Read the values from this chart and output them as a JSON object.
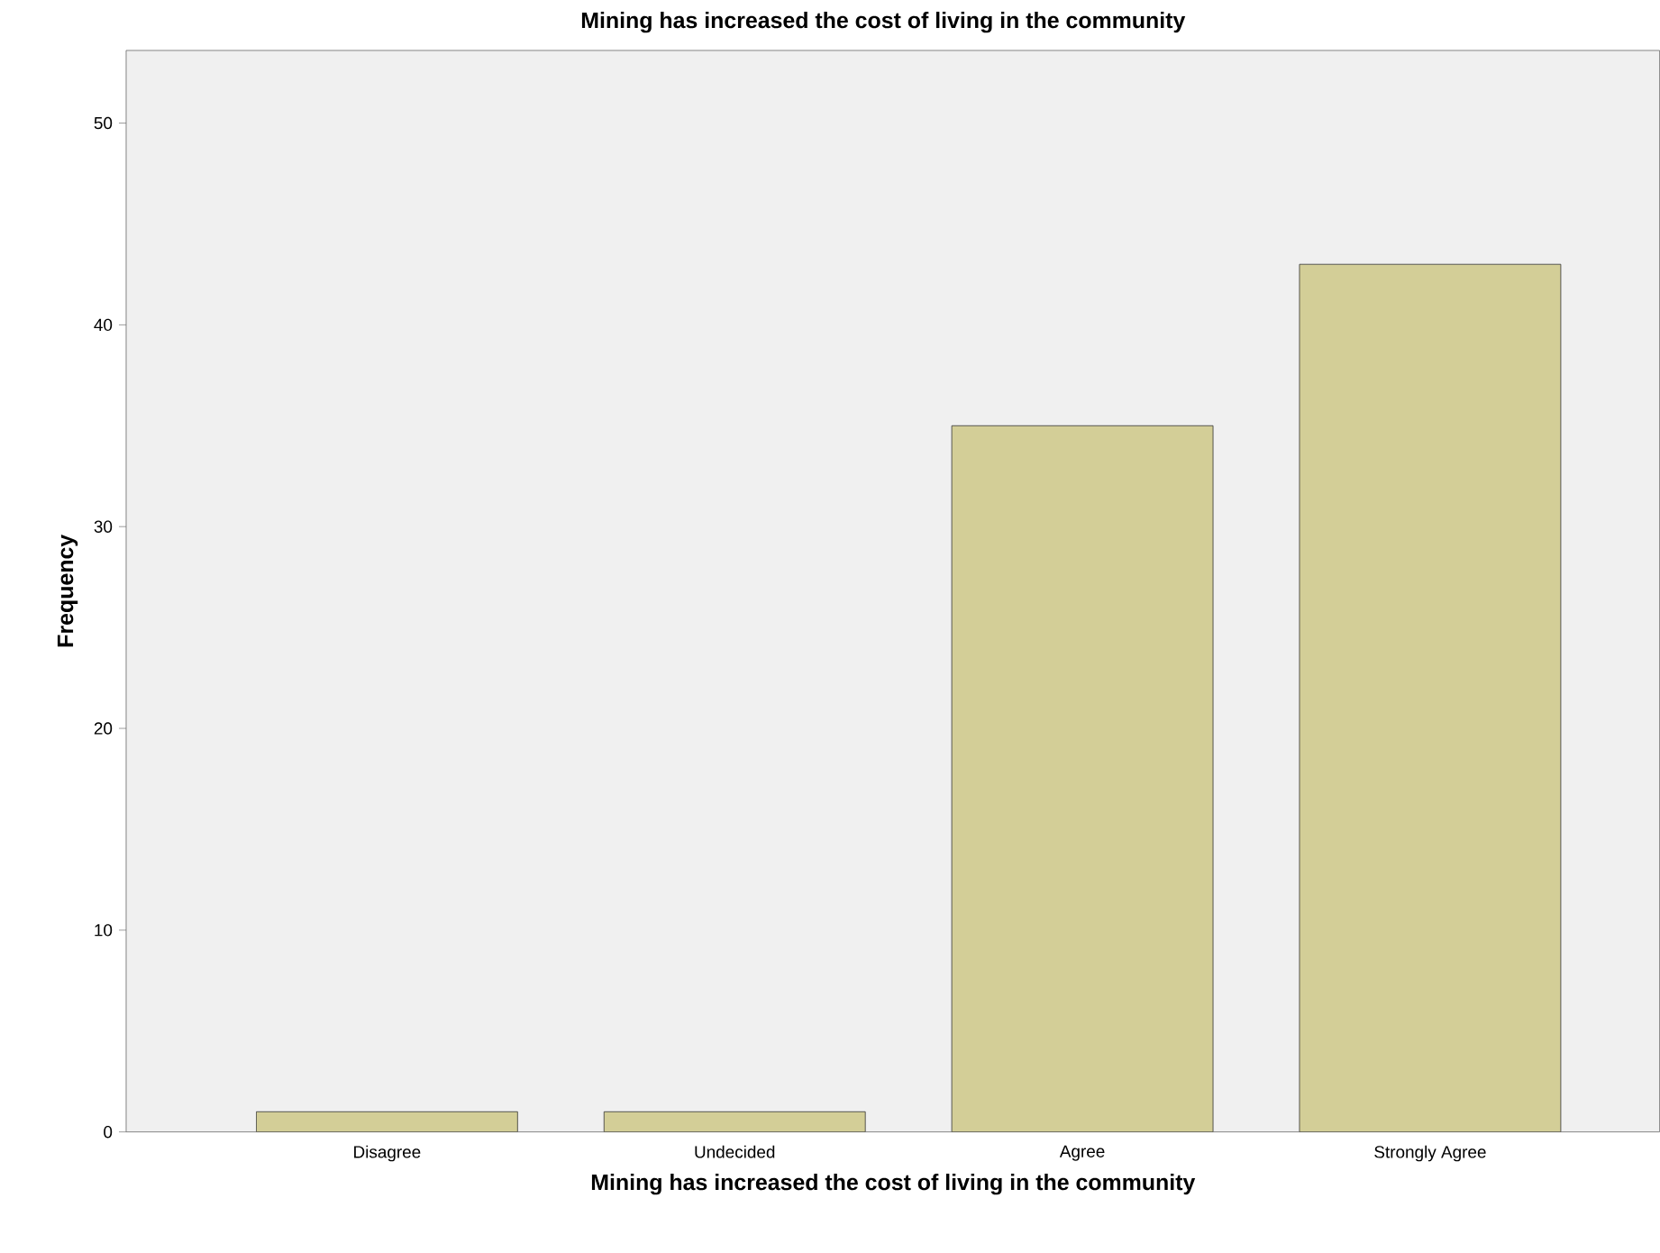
{
  "chart_data": {
    "type": "bar",
    "title": "Mining has increased the cost of living in the community",
    "xlabel": "Mining has increased the cost of living in the community",
    "ylabel": "Frequency",
    "categories": [
      "Disagree",
      "Undecided",
      "Agree",
      "Strongly Agree"
    ],
    "values": [
      1,
      1,
      35,
      43
    ],
    "color": "#d3ce97",
    "ylim": [
      0,
      53.6
    ],
    "yticks": [
      0,
      10,
      20,
      30,
      40,
      50
    ]
  }
}
